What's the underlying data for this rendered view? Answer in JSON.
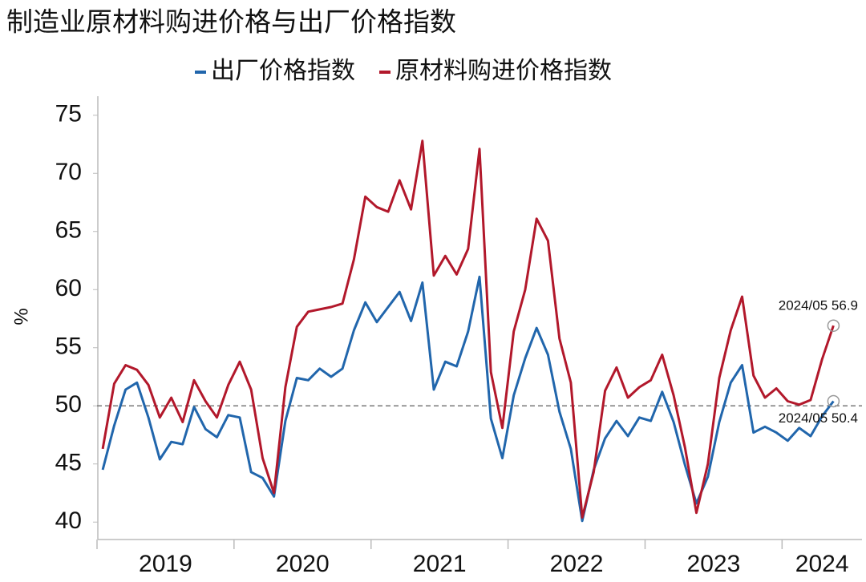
{
  "chart_data": {
    "type": "line",
    "title": "制造业原材料购进价格与出厂价格指数",
    "y_label": "%",
    "categories": [
      "2019",
      null,
      null,
      null,
      null,
      null,
      null,
      null,
      null,
      null,
      null,
      null,
      "2020",
      null,
      null,
      null,
      null,
      null,
      null,
      null,
      null,
      null,
      null,
      null,
      "2021",
      null,
      null,
      null,
      null,
      null,
      null,
      null,
      null,
      null,
      null,
      null,
      "2022",
      null,
      null,
      null,
      null,
      null,
      null,
      null,
      null,
      null,
      null,
      null,
      "2023",
      null,
      null,
      null,
      null,
      null,
      null,
      null,
      null,
      null,
      null,
      null,
      "2024",
      null,
      null,
      null,
      null
    ],
    "series": [
      {
        "name": "出厂价格指数",
        "color": "#2166ac",
        "values": [
          44.5,
          48.3,
          51.4,
          52.0,
          49.0,
          45.4,
          46.9,
          46.7,
          49.9,
          48.0,
          47.3,
          49.2,
          49.0,
          44.3,
          43.8,
          42.2,
          48.7,
          52.4,
          52.2,
          53.2,
          52.5,
          53.2,
          56.5,
          58.9,
          57.2,
          58.5,
          59.8,
          57.3,
          60.6,
          51.4,
          53.8,
          53.4,
          56.4,
          61.1,
          48.9,
          45.5,
          50.9,
          54.1,
          56.7,
          54.4,
          49.5,
          46.3,
          40.1,
          44.5,
          47.2,
          48.7,
          47.4,
          49.0,
          48.7,
          51.2,
          48.6,
          44.9,
          41.6,
          43.9,
          48.6,
          52.0,
          53.5,
          47.7,
          48.2,
          47.7,
          47.0,
          48.1,
          47.4,
          49.1,
          50.4
        ]
      },
      {
        "name": "原材料购进价格指数",
        "color": "#b2182b",
        "values": [
          46.3,
          51.9,
          53.5,
          53.1,
          51.8,
          49.0,
          50.7,
          48.6,
          52.2,
          50.4,
          49.0,
          51.8,
          53.8,
          51.4,
          45.5,
          42.5,
          51.6,
          56.8,
          58.1,
          58.3,
          58.5,
          58.8,
          62.6,
          68.0,
          67.1,
          66.7,
          69.4,
          66.9,
          72.8,
          61.2,
          62.9,
          61.3,
          63.5,
          72.1,
          52.9,
          48.1,
          56.4,
          60.0,
          66.1,
          64.2,
          55.8,
          52.0,
          40.4,
          44.3,
          51.3,
          53.3,
          50.7,
          51.6,
          52.2,
          54.4,
          50.9,
          46.4,
          40.8,
          45.0,
          52.4,
          56.5,
          59.4,
          52.6,
          50.7,
          51.5,
          50.4,
          50.1,
          50.5,
          54.0,
          56.9
        ]
      }
    ],
    "annotations": [
      {
        "text": "2024/05 56.9",
        "series": 1
      },
      {
        "text": "2024/05 50.4",
        "series": 0
      }
    ],
    "reference_line": 50,
    "ylim": [
      38.5,
      76.5
    ],
    "yticks": [
      40,
      45,
      50,
      55,
      60,
      65,
      70,
      75
    ]
  }
}
